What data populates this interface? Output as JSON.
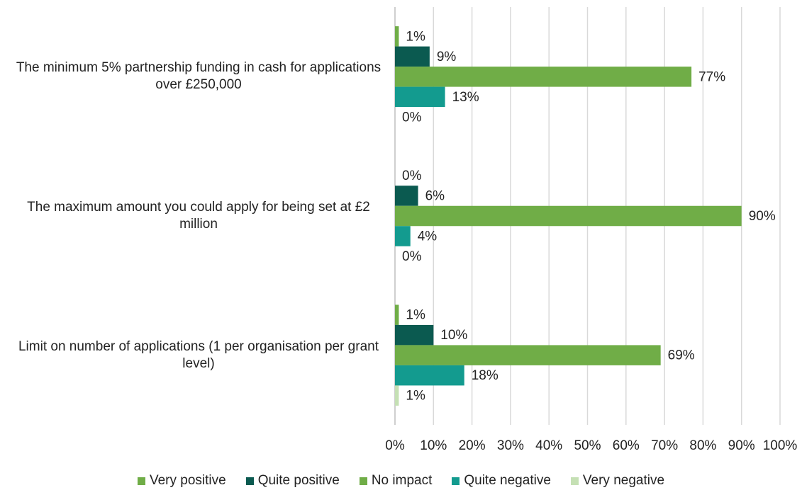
{
  "chart_data": {
    "type": "hbar",
    "categories": [
      "The minimum 5% partnership funding in cash for applications over £250,000",
      "The maximum amount you could apply for being set at £2 million",
      "Limit on number of applications (1 per organisation per grant level)"
    ],
    "series": [
      {
        "name": "Very positive",
        "color": "#70ad47",
        "values": [
          1,
          0,
          1
        ],
        "value_labels": [
          "1%",
          "0%",
          "1%"
        ]
      },
      {
        "name": "Quite positive",
        "color": "#0b5a50",
        "values": [
          9,
          6,
          10
        ],
        "value_labels": [
          "9%",
          "6%",
          "10%"
        ]
      },
      {
        "name": "No impact",
        "color": "#70ad47",
        "values": [
          77,
          90,
          69
        ],
        "value_labels": [
          "77%",
          "90%",
          "69%"
        ]
      },
      {
        "name": "Quite negative",
        "color": "#139b8f",
        "values": [
          13,
          4,
          18
        ],
        "value_labels": [
          "13%",
          "4%",
          "18%"
        ]
      },
      {
        "name": "Very negative",
        "color": "#c5e0b4",
        "values": [
          0,
          0,
          1
        ],
        "value_labels": [
          "0%",
          "0%",
          "1%"
        ]
      }
    ],
    "xlim": [
      0,
      100
    ],
    "xticks": [
      {
        "value": 0,
        "label": "0%"
      },
      {
        "value": 10,
        "label": "10%"
      },
      {
        "value": 20,
        "label": "20%"
      },
      {
        "value": 30,
        "label": "30%"
      },
      {
        "value": 40,
        "label": "40%"
      },
      {
        "value": 50,
        "label": "50%"
      },
      {
        "value": 60,
        "label": "60%"
      },
      {
        "value": 70,
        "label": "70%"
      },
      {
        "value": 80,
        "label": "80%"
      },
      {
        "value": 90,
        "label": "90%"
      },
      {
        "value": 100,
        "label": "100%"
      }
    ],
    "grid": true,
    "legend": "bottom"
  }
}
